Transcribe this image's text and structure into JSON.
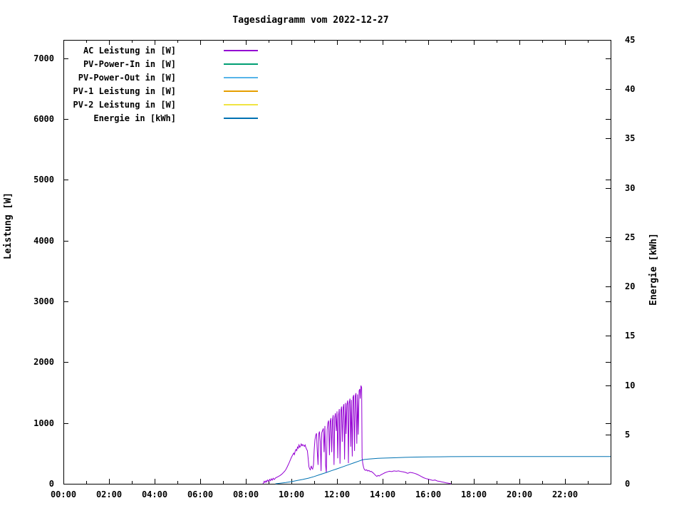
{
  "title": "Tagesdiagramm vom 2022-12-27",
  "chart_data": {
    "type": "line",
    "title": "Tagesdiagramm vom 2022-12-27",
    "grid": false,
    "legend_position": "top-left",
    "background_color": "#ffffff",
    "border_color": "#000000",
    "x_axis": {
      "unit": "time of day",
      "range_hours": [
        0,
        24
      ],
      "major_tick_step_hours": 2,
      "minor_tick_step_hours": 1,
      "tick_labels": [
        "00:00",
        "02:00",
        "04:00",
        "06:00",
        "08:00",
        "10:00",
        "12:00",
        "14:00",
        "16:00",
        "18:00",
        "20:00",
        "22:00"
      ]
    },
    "y_left_axis": {
      "label": "Leistung [W]",
      "range": [
        0,
        7300
      ],
      "ticks": [
        0,
        1000,
        2000,
        3000,
        4000,
        5000,
        6000,
        7000
      ]
    },
    "y_right_axis": {
      "label": "Energie [kWh]",
      "range": [
        0,
        45
      ],
      "ticks": [
        0,
        5,
        10,
        15,
        20,
        25,
        30,
        35,
        40,
        45
      ]
    },
    "series": [
      {
        "name": "AC Leistung in [W]",
        "color": "#9400D3",
        "axis": "left",
        "visible": true,
        "points": [
          [
            8.75,
            0
          ],
          [
            8.78,
            18
          ],
          [
            8.81,
            42
          ],
          [
            8.84,
            22
          ],
          [
            8.88,
            48
          ],
          [
            8.91,
            28
          ],
          [
            8.95,
            62
          ],
          [
            9.0,
            40
          ],
          [
            9.04,
            72
          ],
          [
            9.08,
            50
          ],
          [
            9.12,
            82
          ],
          [
            9.16,
            60
          ],
          [
            9.2,
            90
          ],
          [
            9.25,
            70
          ],
          [
            9.3,
            95
          ],
          [
            9.35,
            105
          ],
          [
            9.4,
            115
          ],
          [
            9.45,
            125
          ],
          [
            9.5,
            135
          ],
          [
            9.55,
            150
          ],
          [
            9.6,
            165
          ],
          [
            9.65,
            185
          ],
          [
            9.7,
            205
          ],
          [
            9.75,
            230
          ],
          [
            9.8,
            265
          ],
          [
            9.85,
            305
          ],
          [
            9.9,
            345
          ],
          [
            9.95,
            390
          ],
          [
            10.0,
            435
          ],
          [
            10.05,
            470
          ],
          [
            10.1,
            505
          ],
          [
            10.13,
            480
          ],
          [
            10.17,
            540
          ],
          [
            10.2,
            565
          ],
          [
            10.23,
            545
          ],
          [
            10.27,
            605
          ],
          [
            10.3,
            585
          ],
          [
            10.33,
            640
          ],
          [
            10.37,
            600
          ],
          [
            10.4,
            620
          ],
          [
            10.43,
            655
          ],
          [
            10.47,
            625
          ],
          [
            10.5,
            645
          ],
          [
            10.53,
            630
          ],
          [
            10.57,
            615
          ],
          [
            10.6,
            640
          ],
          [
            10.63,
            600
          ],
          [
            10.67,
            565
          ],
          [
            10.7,
            545
          ],
          [
            10.73,
            430
          ],
          [
            10.77,
            280
          ],
          [
            10.8,
            245
          ],
          [
            10.83,
            230
          ],
          [
            10.87,
            295
          ],
          [
            10.9,
            255
          ],
          [
            10.93,
            240
          ],
          [
            10.97,
            310
          ],
          [
            11.0,
            560
          ],
          [
            11.03,
            720
          ],
          [
            11.07,
            800
          ],
          [
            11.1,
            830
          ],
          [
            11.13,
            560
          ],
          [
            11.17,
            310
          ],
          [
            11.2,
            820
          ],
          [
            11.23,
            860
          ],
          [
            11.27,
            680
          ],
          [
            11.3,
            210
          ],
          [
            11.33,
            840
          ],
          [
            11.37,
            880
          ],
          [
            11.4,
            910
          ],
          [
            11.43,
            520
          ],
          [
            11.47,
            950
          ],
          [
            11.5,
            310
          ],
          [
            11.53,
            180
          ],
          [
            11.57,
            890
          ],
          [
            11.6,
            1000
          ],
          [
            11.63,
            1040
          ],
          [
            11.67,
            470
          ],
          [
            11.7,
            1020
          ],
          [
            11.73,
            1080
          ],
          [
            11.77,
            520
          ],
          [
            11.8,
            1040
          ],
          [
            11.83,
            1130
          ],
          [
            11.87,
            310
          ],
          [
            11.9,
            1090
          ],
          [
            11.93,
            1160
          ],
          [
            11.97,
            870
          ],
          [
            12.0,
            1190
          ],
          [
            12.03,
            420
          ],
          [
            12.07,
            1130
          ],
          [
            12.1,
            1230
          ],
          [
            12.13,
            330
          ],
          [
            12.17,
            1200
          ],
          [
            12.2,
            1270
          ],
          [
            12.23,
            690
          ],
          [
            12.27,
            1250
          ],
          [
            12.3,
            1310
          ],
          [
            12.33,
            400
          ],
          [
            12.37,
            1330
          ],
          [
            12.4,
            820
          ],
          [
            12.43,
            1300
          ],
          [
            12.47,
            1370
          ],
          [
            12.5,
            340
          ],
          [
            12.53,
            1320
          ],
          [
            12.57,
            1400
          ],
          [
            12.6,
            610
          ],
          [
            12.63,
            1380
          ],
          [
            12.67,
            450
          ],
          [
            12.7,
            1420
          ],
          [
            12.73,
            1460
          ],
          [
            12.77,
            540
          ],
          [
            12.8,
            1440
          ],
          [
            12.83,
            1490
          ],
          [
            12.87,
            660
          ],
          [
            12.9,
            1470
          ],
          [
            12.93,
            810
          ],
          [
            12.97,
            1530
          ],
          [
            13.0,
            1560
          ],
          [
            13.02,
            1400
          ],
          [
            13.05,
            1615
          ],
          [
            13.08,
            1580
          ],
          [
            13.1,
            430
          ],
          [
            13.13,
            330
          ],
          [
            13.17,
            265
          ],
          [
            13.2,
            235
          ],
          [
            13.25,
            220
          ],
          [
            13.3,
            230
          ],
          [
            13.35,
            210
          ],
          [
            13.4,
            220
          ],
          [
            13.45,
            200
          ],
          [
            13.5,
            205
          ],
          [
            13.55,
            190
          ],
          [
            13.6,
            175
          ],
          [
            13.65,
            155
          ],
          [
            13.7,
            135
          ],
          [
            13.75,
            122
          ],
          [
            13.8,
            138
          ],
          [
            13.85,
            128
          ],
          [
            13.9,
            142
          ],
          [
            13.95,
            152
          ],
          [
            14.0,
            162
          ],
          [
            14.1,
            182
          ],
          [
            14.2,
            196
          ],
          [
            14.3,
            206
          ],
          [
            14.4,
            200
          ],
          [
            14.5,
            212
          ],
          [
            14.6,
            206
          ],
          [
            14.7,
            212
          ],
          [
            14.8,
            202
          ],
          [
            14.9,
            196
          ],
          [
            15.0,
            188
          ],
          [
            15.1,
            172
          ],
          [
            15.2,
            188
          ],
          [
            15.3,
            182
          ],
          [
            15.4,
            172
          ],
          [
            15.5,
            158
          ],
          [
            15.6,
            140
          ],
          [
            15.7,
            120
          ],
          [
            15.8,
            100
          ],
          [
            15.9,
            86
          ],
          [
            16.0,
            76
          ],
          [
            16.1,
            66
          ],
          [
            16.2,
            56
          ],
          [
            16.3,
            62
          ],
          [
            16.4,
            46
          ],
          [
            16.5,
            40
          ],
          [
            16.6,
            30
          ],
          [
            16.7,
            24
          ],
          [
            16.8,
            14
          ],
          [
            16.9,
            8
          ],
          [
            17.0,
            0
          ]
        ]
      },
      {
        "name": "PV-Power-In in [W]",
        "color": "#009E73",
        "axis": "left",
        "visible": false,
        "points": []
      },
      {
        "name": "PV-Power-Out in [W]",
        "color": "#56B4E9",
        "axis": "left",
        "visible": false,
        "points": []
      },
      {
        "name": "PV-1 Leistung in [W]",
        "color": "#E69F00",
        "axis": "left",
        "visible": false,
        "points": []
      },
      {
        "name": "PV-2 Leistung in [W]",
        "color": "#F0E442",
        "axis": "left",
        "visible": false,
        "points": []
      },
      {
        "name": "Energie in [kWh]",
        "color": "#0072B2",
        "axis": "right",
        "visible": true,
        "points": [
          [
            9.3,
            0
          ],
          [
            9.5,
            0.05
          ],
          [
            9.75,
            0.12
          ],
          [
            10.0,
            0.22
          ],
          [
            10.25,
            0.33
          ],
          [
            10.5,
            0.44
          ],
          [
            10.75,
            0.57
          ],
          [
            11.0,
            0.74
          ],
          [
            11.25,
            0.93
          ],
          [
            11.5,
            1.12
          ],
          [
            11.75,
            1.32
          ],
          [
            12.0,
            1.52
          ],
          [
            12.25,
            1.72
          ],
          [
            12.5,
            1.93
          ],
          [
            12.75,
            2.13
          ],
          [
            13.0,
            2.33
          ],
          [
            13.1,
            2.42
          ],
          [
            13.2,
            2.46
          ],
          [
            13.4,
            2.51
          ],
          [
            13.6,
            2.55
          ],
          [
            13.8,
            2.58
          ],
          [
            14.0,
            2.6
          ],
          [
            14.5,
            2.64
          ],
          [
            15.0,
            2.68
          ],
          [
            15.5,
            2.71
          ],
          [
            16.0,
            2.73
          ],
          [
            16.5,
            2.74
          ],
          [
            17.0,
            2.75
          ],
          [
            18.0,
            2.76
          ],
          [
            20.0,
            2.76
          ],
          [
            22.0,
            2.76
          ],
          [
            24.0,
            2.76
          ]
        ]
      }
    ]
  }
}
